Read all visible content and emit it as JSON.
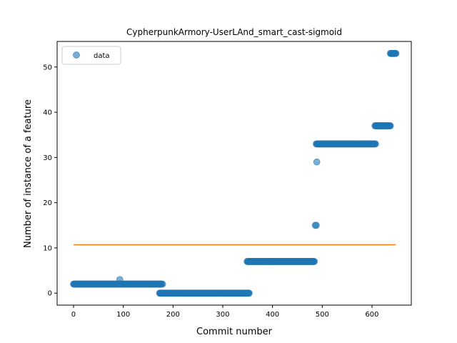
{
  "chart_data": {
    "type": "scatter",
    "title": "CypherpunkArmory-UserLAnd_smart_cast-sigmoid",
    "xlabel": "Commit number",
    "ylabel": "Number of instance of a feature",
    "xlim": [
      -33,
      679
    ],
    "ylim": [
      -2.65,
      55.65
    ],
    "xticks": [
      0,
      100,
      200,
      300,
      400,
      500,
      600
    ],
    "yticks": [
      0,
      10,
      20,
      30,
      40,
      50
    ],
    "grid": false,
    "legend": {
      "position": "top-left",
      "entries": [
        "data"
      ]
    },
    "colors": {
      "points": "#1f77b4",
      "line": "#ff7f0e"
    },
    "series": [
      {
        "name": "data",
        "kind": "scatter",
        "segments": [
          {
            "x_start": 0,
            "x_end": 177,
            "y": 2
          },
          {
            "x_start": 173,
            "x_end": 353,
            "y": 0
          },
          {
            "x_start": 349,
            "x_end": 484,
            "y": 7
          },
          {
            "x_start": 488,
            "x_end": 607,
            "y": 33
          },
          {
            "x_start": 606,
            "x_end": 637,
            "y": 37
          },
          {
            "x_start": 637,
            "x_end": 648,
            "y": 53
          }
        ],
        "points": [
          {
            "x": 93,
            "y": 3
          },
          {
            "x": 179,
            "y": 2
          },
          {
            "x": 486,
            "y": 15
          },
          {
            "x": 488,
            "y": 15
          },
          {
            "x": 489,
            "y": 29
          }
        ]
      },
      {
        "kind": "line",
        "x": [
          0,
          648
        ],
        "y": [
          10.7,
          10.7
        ]
      }
    ]
  }
}
